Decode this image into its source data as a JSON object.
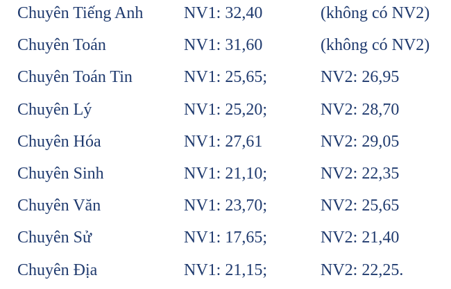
{
  "document": {
    "background_color": "#ffffff",
    "text_color": "#1f3a6e"
  },
  "rows": [
    {
      "subject": "Chuyên Tiếng Anh",
      "nv1": "NV1: 32,40",
      "nv2": "(không có NV2)"
    },
    {
      "subject": "Chuyên Toán",
      "nv1": "NV1: 31,60",
      "nv2": "(không có NV2)"
    },
    {
      "subject": "Chuyên Toán Tin",
      "nv1": "NV1: 25,65;",
      "nv2": "NV2: 26,95"
    },
    {
      "subject": "Chuyên Lý",
      "nv1": "NV1: 25,20;",
      "nv2": "NV2: 28,70"
    },
    {
      "subject": "Chuyên Hóa",
      "nv1": "NV1: 27,61",
      "nv2": "NV2: 29,05"
    },
    {
      "subject": "Chuyên Sinh",
      "nv1": "NV1: 21,10;",
      "nv2": "NV2: 22,35"
    },
    {
      "subject": "Chuyên Văn",
      "nv1": "NV1: 23,70;",
      "nv2": "NV2: 25,65"
    },
    {
      "subject": "Chuyên Sử",
      "nv1": "NV1: 17,65;",
      "nv2": "NV2: 21,40"
    },
    {
      "subject": "Chuyên Địa",
      "nv1": "NV1: 21,15;",
      "nv2": "NV2: 22,25."
    }
  ]
}
